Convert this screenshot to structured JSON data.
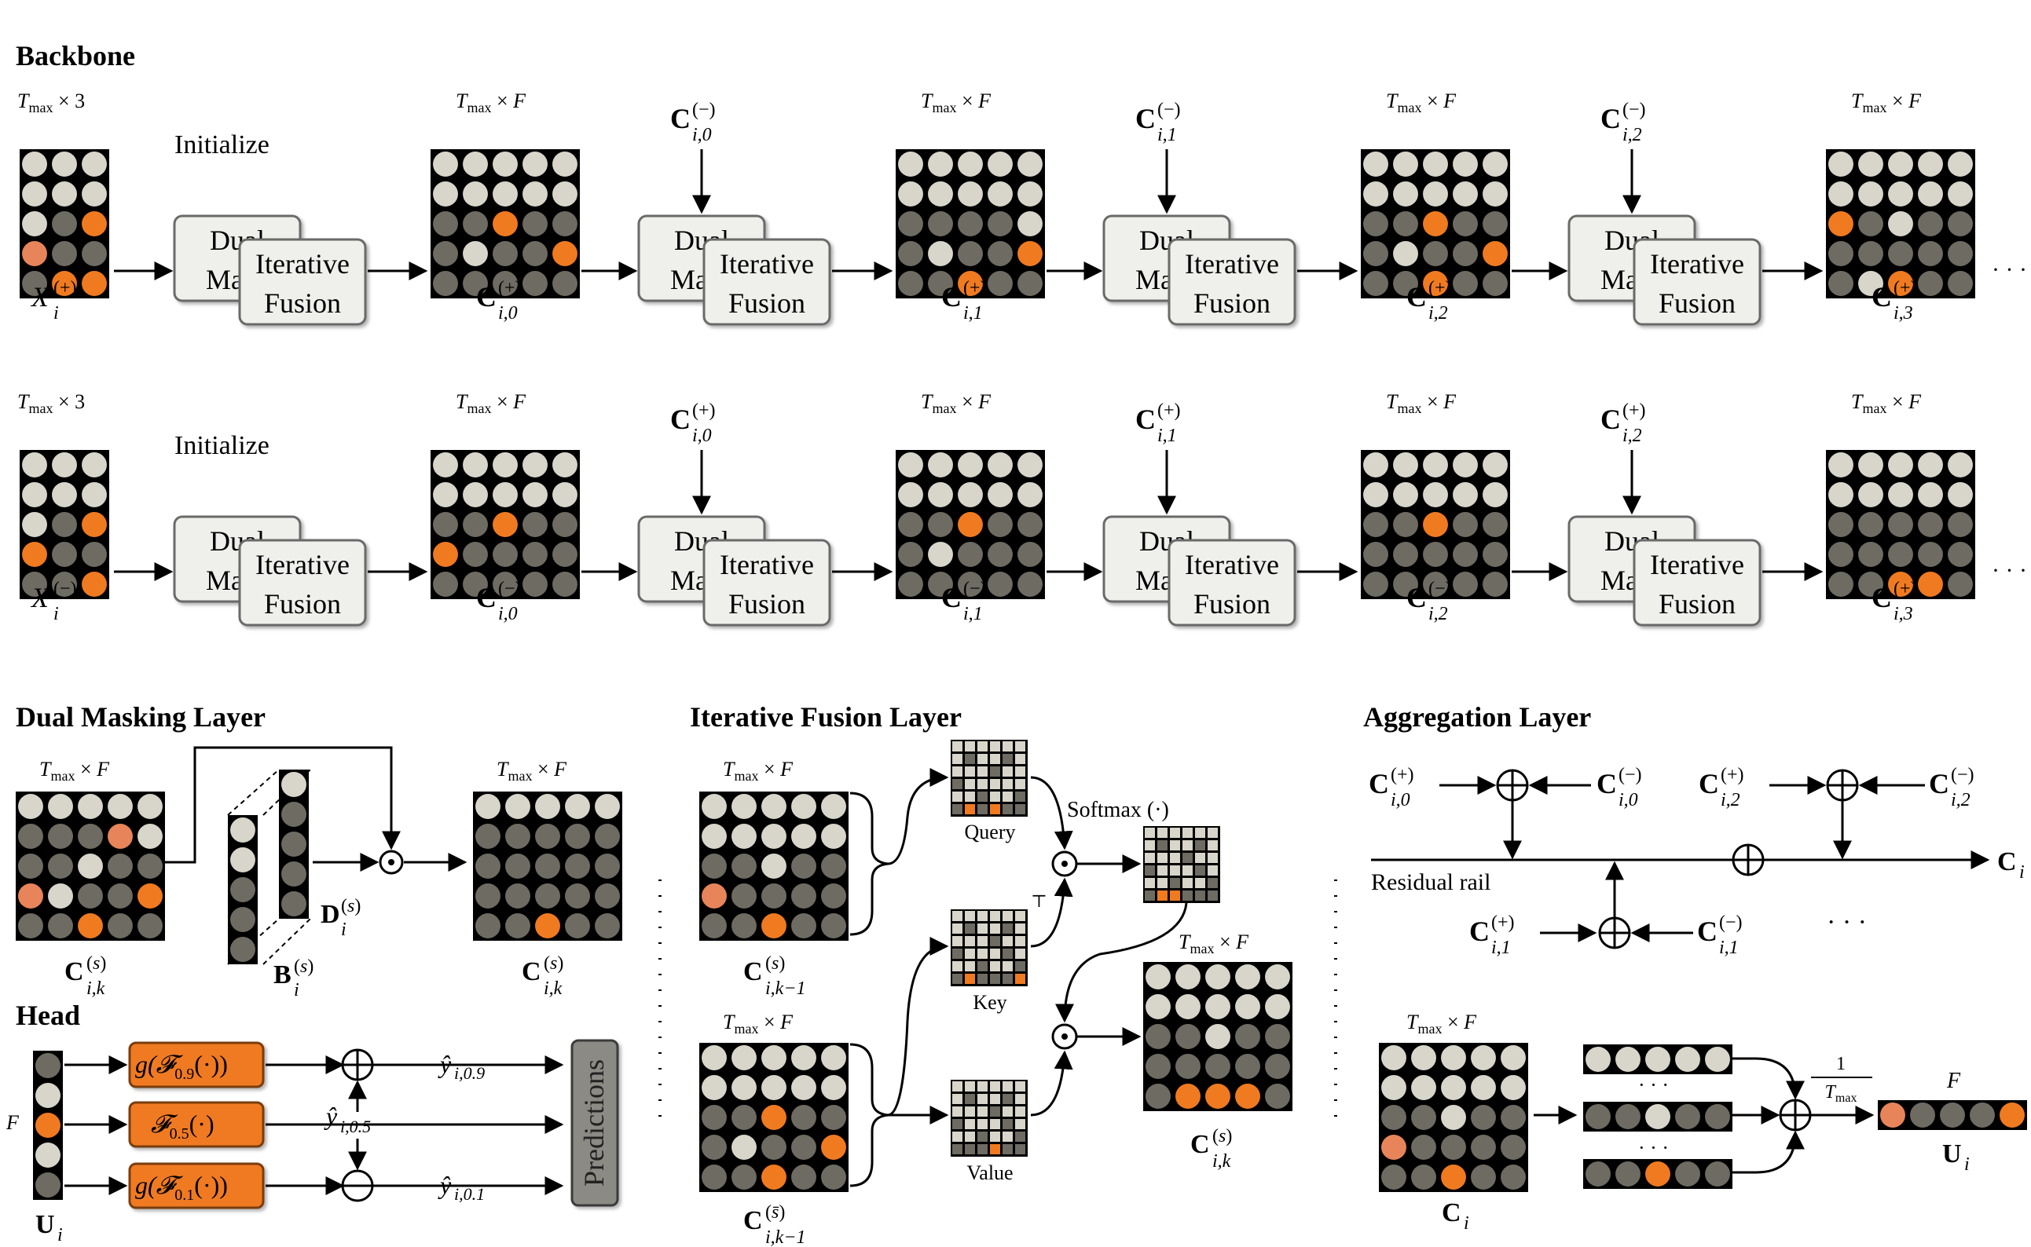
{
  "sections": {
    "backbone": "Backbone",
    "dual_masking": "Dual Masking Layer",
    "iterative_fusion": "Iterative Fusion Layer",
    "aggregation": "Aggregation Layer",
    "head": "Head"
  },
  "backbone": {
    "initialize": "Initialize",
    "dual_mask": [
      "Dual",
      "Mask"
    ],
    "iterative_fusion": [
      "Iterative",
      "Fusion"
    ],
    "ellipsis": "· · ·",
    "input_dim": "Tmax × 3",
    "state_dim": "Tmax × F",
    "rows": [
      {
        "input": "X_i^(+)",
        "states": [
          "C_i,0^(+)",
          "C_i,1^(+)",
          "C_i,2^(+)",
          "C_i,3^(+)"
        ],
        "cross": [
          "C_i,0^(−)",
          "C_i,1^(−)",
          "C_i,2^(−)"
        ]
      },
      {
        "input": "X_i^(−)",
        "states": [
          "C_i,0^(−)",
          "C_i,1^(−)",
          "C_i,2^(−)",
          "C_i,3^(+)"
        ],
        "cross": [
          "C_i,0^(+)",
          "C_i,1^(+)",
          "C_i,2^(+)"
        ]
      }
    ]
  },
  "dual_masking": {
    "dim_in": "Tmax × F",
    "dim_out": "Tmax × F",
    "input": "C_i,k^(s)",
    "mask_b": "B_i^(s)",
    "mask_d": "D_i^(s)",
    "output": "C_i,k^(s)"
  },
  "iterative_fusion": {
    "dim_top": "Tmax × F",
    "dim_bottom": "Tmax × F",
    "dim_out": "Tmax × F",
    "input_top": "C_i,k−1^(s)",
    "input_bottom": "C_i,k−1^(s̄)",
    "query": "Query",
    "key": "Key",
    "value": "Value",
    "transpose": "⊤",
    "softmax": "Softmax (·)",
    "output": "C_i,k^(s)"
  },
  "aggregation": {
    "residual_rail": "Residual rail",
    "output": "C_i",
    "inputs_top": [
      "C_i,0^(+)",
      "C_i,0^(−)",
      "C_i,2^(+)",
      "C_i,2^(−)"
    ],
    "inputs_bottom": [
      "C_i,1^(+)",
      "C_i,1^(−)"
    ],
    "ellipsis": "· · ·",
    "dim": "Tmax × F",
    "matrix_label": "C_i",
    "scale_num": "1",
    "scale_den": "Tmax",
    "vector_dim": "F",
    "vector_label": "U_i",
    "dots": "· · ·"
  },
  "head": {
    "input_dim": "F",
    "input_label": "U_i",
    "funcs": [
      "g(F0.9(·))",
      "F0.5(·)",
      "g(F0.1(·))"
    ],
    "outputs": [
      "ŷ i,0.9",
      "ŷ i,0.5",
      "ŷ i,0.1"
    ],
    "predictions": "Predictions"
  },
  "colors": {
    "light": "#d8d5ca",
    "dark": "#6e6b62",
    "orange": "#f07a20",
    "orange_light": "#e8845a",
    "block_fill": "#efefeb",
    "block_stroke": "#6a6a6a",
    "orange_box_stroke": "#7a3d10",
    "grid_bg": "#000000"
  }
}
